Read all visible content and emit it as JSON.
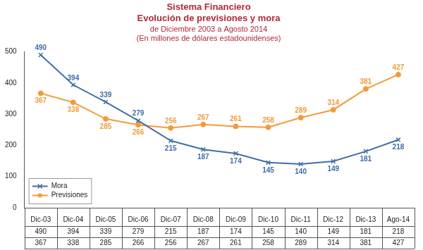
{
  "chart_data": {
    "type": "line",
    "title": [
      "Sistema Financiero",
      "Evolución de previsiones y mora"
    ],
    "subtitle": [
      "de Diciembre 2003 a Agosto 2014",
      "(En millones de dólares estadounidenses)"
    ],
    "categories": [
      "Dic-03",
      "Dic-04",
      "Dic-05",
      "Dic-06",
      "Dic-07",
      "Dic-08",
      "Dic-09",
      "Dic-10",
      "Dic-11",
      "Dic-12",
      "Dic-13",
      "Ago-14"
    ],
    "series": [
      {
        "name": "Mora",
        "color": "#3f6ea8",
        "marker": "x",
        "values": [
          490,
          394,
          339,
          279,
          215,
          187,
          174,
          145,
          140,
          149,
          181,
          218
        ]
      },
      {
        "name": "Previsiones",
        "color": "#f29b3c",
        "marker": "circle",
        "values": [
          367,
          338,
          285,
          266,
          256,
          267,
          261,
          258,
          289,
          314,
          381,
          427
        ]
      }
    ],
    "ylim": [
      0,
      500
    ],
    "yticks": [
      0,
      100,
      200,
      300,
      400,
      500
    ],
    "grid": false,
    "legend": "lower left",
    "data_labels": true
  }
}
